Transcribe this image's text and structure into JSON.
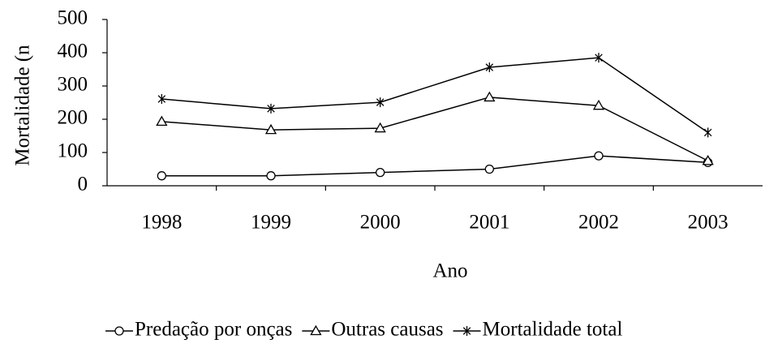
{
  "chart_data": {
    "type": "line",
    "ylabel": "Mortalidade (n",
    "xlabel": "Ano",
    "categories": [
      "1998",
      "1999",
      "2000",
      "2001",
      "2002",
      "2003"
    ],
    "series": [
      {
        "name": "Predação por onças",
        "color": "#000000",
        "marker": "circle",
        "values": [
          30,
          30,
          40,
          50,
          90,
          70
        ]
      },
      {
        "name": "Outras causas",
        "color": "#000000",
        "marker": "triangle",
        "values": [
          193,
          168,
          173,
          266,
          241,
          75
        ]
      },
      {
        "name": "Mortalidade total",
        "color": "#000000",
        "marker": "asterisk",
        "values": [
          261,
          232,
          251,
          356,
          385,
          160
        ]
      }
    ],
    "ylim": [
      0,
      500
    ],
    "yticks": [
      0,
      100,
      200,
      300,
      400,
      500
    ],
    "legend": "bottom"
  }
}
